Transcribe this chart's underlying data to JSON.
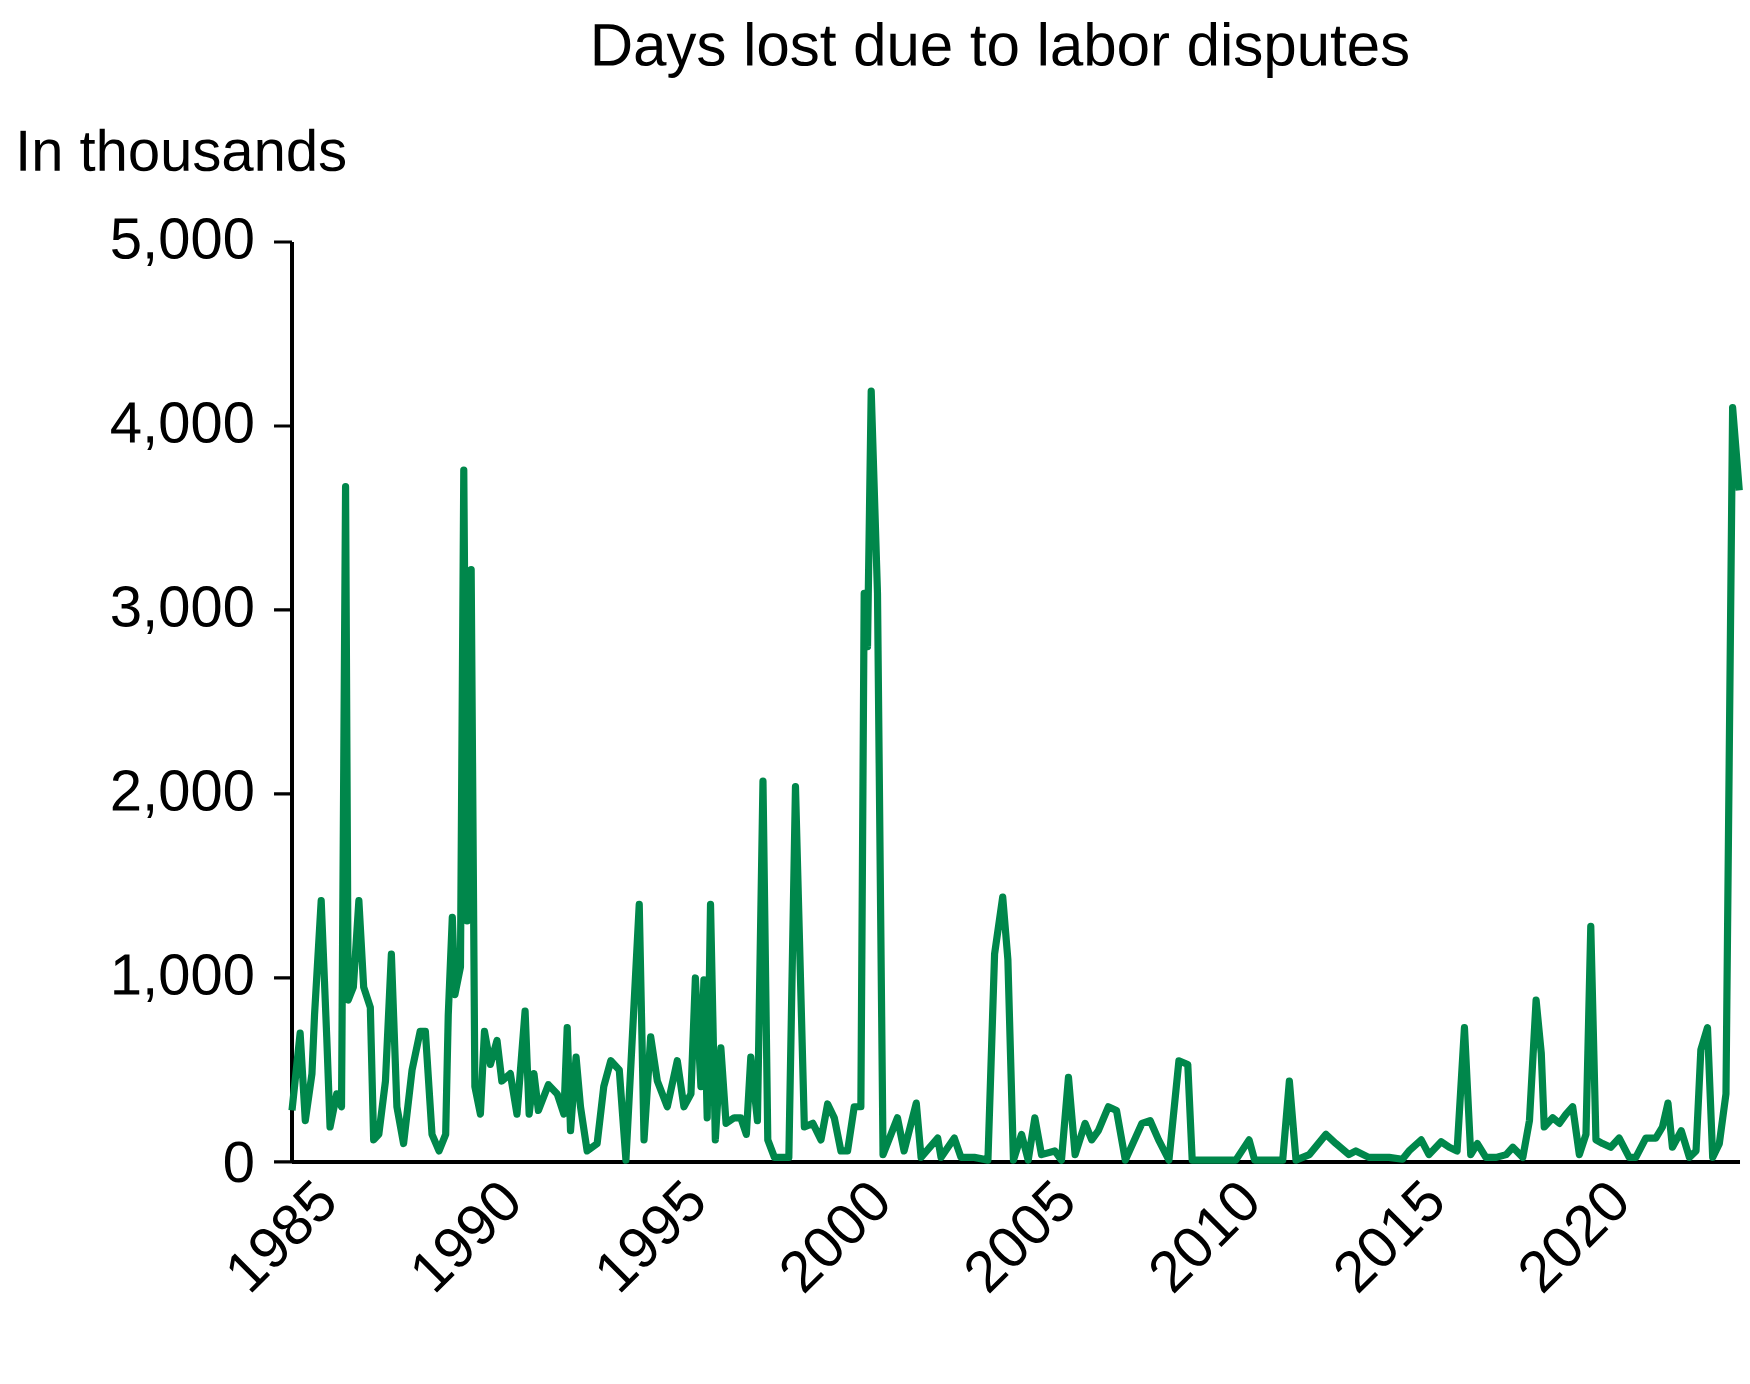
{
  "chart_data": {
    "type": "line",
    "title": "Days lost due to labor disputes",
    "ylabel": "In thousands",
    "color": "#00874b",
    "x": [
      1985.0,
      1985.22,
      1985.36,
      1985.54,
      1985.61,
      1985.79,
      1985.94,
      1986.03,
      1986.21,
      1986.34,
      1986.45,
      1986.52,
      1986.66,
      1986.81,
      1986.94,
      1987.12,
      1987.21,
      1987.35,
      1987.53,
      1987.69,
      1987.84,
      1988.02,
      1988.25,
      1988.47,
      1988.61,
      1988.79,
      1988.98,
      1989.16,
      1989.23,
      1989.34,
      1989.41,
      1989.56,
      1989.65,
      1989.74,
      1989.85,
      1989.95,
      1990.1,
      1990.21,
      1990.37,
      1990.55,
      1990.68,
      1990.91,
      1991.09,
      1991.31,
      1991.42,
      1991.55,
      1991.67,
      1991.94,
      1992.18,
      1992.36,
      1992.45,
      1992.54,
      1992.69,
      1992.81,
      1992.99,
      1993.26,
      1993.44,
      1993.63,
      1993.86,
      1994.04,
      1994.4,
      1994.53,
      1994.71,
      1994.89,
      1995.16,
      1995.43,
      1995.61,
      1995.8,
      1995.92,
      1996.07,
      1996.15,
      1996.24,
      1996.33,
      1996.46,
      1996.61,
      1996.75,
      1996.97,
      1997.15,
      1997.3,
      1997.42,
      1997.6,
      1997.75,
      1997.88,
      1998.06,
      1998.45,
      1998.63,
      1998.87,
      1999.1,
      1999.32,
      1999.5,
      1999.68,
      1999.86,
      2000.04,
      2000.22,
      2000.4,
      2000.49,
      2000.58,
      2000.68,
      2000.85,
      2001.0,
      2001.39,
      2001.57,
      2001.9,
      2002.03,
      2002.48,
      2002.57,
      2002.93,
      2003.11,
      2003.47,
      2003.84,
      2004.02,
      2004.24,
      2004.38,
      2004.53,
      2004.75,
      2004.93,
      2005.11,
      2005.29,
      2005.65,
      2005.83,
      2006.02,
      2006.2,
      2006.47,
      2006.65,
      2006.83,
      2007.1,
      2007.32,
      2007.56,
      2008.01,
      2008.23,
      2008.46,
      2008.74,
      2009.01,
      2009.25,
      2009.37,
      2009.82,
      2010.0,
      2010.55,
      2010.91,
      2011.06,
      2011.45,
      2011.82,
      2012.0,
      2012.18,
      2012.54,
      2012.99,
      2013.26,
      2013.61,
      2013.8,
      2014.15,
      2014.7,
      2015.06,
      2015.24,
      2015.57,
      2015.78,
      2016.11,
      2016.33,
      2016.54,
      2016.74,
      2016.91,
      2017.09,
      2017.32,
      2017.6,
      2017.87,
      2018.05,
      2018.32,
      2018.5,
      2018.68,
      2018.82,
      2018.9,
      2019.13,
      2019.31,
      2019.49,
      2019.67,
      2019.85,
      2020.03,
      2020.16,
      2020.3,
      2020.48,
      2020.7,
      2020.93,
      2021.2,
      2021.38,
      2021.65,
      2021.92,
      2022.1,
      2022.25,
      2022.37,
      2022.61,
      2022.83,
      2023.01,
      2023.14,
      2023.32,
      2023.46,
      2023.64,
      2023.82,
      2024.0,
      2024.18
    ],
    "values": [
      280,
      700,
      225,
      480,
      800,
      1420,
      680,
      190,
      370,
      300,
      3670,
      880,
      950,
      1420,
      950,
      840,
      120,
      150,
      440,
      1130,
      300,
      100,
      500,
      710,
      710,
      150,
      60,
      150,
      800,
      1330,
      910,
      1060,
      3760,
      1310,
      3220,
      410,
      260,
      710,
      530,
      660,
      440,
      480,
      260,
      820,
      260,
      480,
      280,
      420,
      370,
      260,
      730,
      170,
      570,
      300,
      60,
      100,
      410,
      550,
      500,
      10,
      1400,
      120,
      680,
      440,
      300,
      550,
      300,
      370,
      1000,
      410,
      990,
      240,
      1400,
      120,
      620,
      210,
      240,
      240,
      150,
      570,
      225,
      2070,
      120,
      25,
      25,
      2040,
      190,
      210,
      120,
      315,
      240,
      60,
      60,
      300,
      300,
      3090,
      2800,
      4190,
      3090,
      40,
      240,
      60,
      320,
      25,
      130,
      25,
      130,
      25,
      25,
      10,
      1130,
      1440,
      1100,
      10,
      150,
      10,
      240,
      40,
      60,
      10,
      460,
      40,
      210,
      120,
      170,
      300,
      280,
      10,
      210,
      225,
      120,
      10,
      550,
      530,
      10,
      10,
      10,
      10,
      120,
      10,
      10,
      10,
      440,
      10,
      40,
      150,
      100,
      40,
      60,
      25,
      25,
      15,
      60,
      120,
      40,
      110,
      80,
      60,
      730,
      40,
      100,
      25,
      25,
      40,
      80,
      25,
      225,
      880,
      590,
      190,
      240,
      210,
      260,
      300,
      40,
      150,
      1280,
      120,
      100,
      80,
      130,
      25,
      25,
      130,
      130,
      190,
      320,
      80,
      170,
      25,
      60,
      610,
      730,
      25,
      100,
      370,
      4100,
      3650
    ],
    "xlim": [
      1985,
      2024.2
    ],
    "ylim": [
      0,
      5000
    ],
    "xticks": [
      1985,
      1990,
      1995,
      2000,
      2005,
      2010,
      2015,
      2020
    ],
    "yticks": [
      0,
      {
        "value": 1000,
        "label": "1,000"
      },
      {
        "value": 2000,
        "label": "2,000"
      },
      {
        "value": 3000,
        "label": "3,000"
      },
      {
        "value": 4000,
        "label": "4,000"
      },
      {
        "value": 5000,
        "label": "5,000"
      }
    ]
  }
}
